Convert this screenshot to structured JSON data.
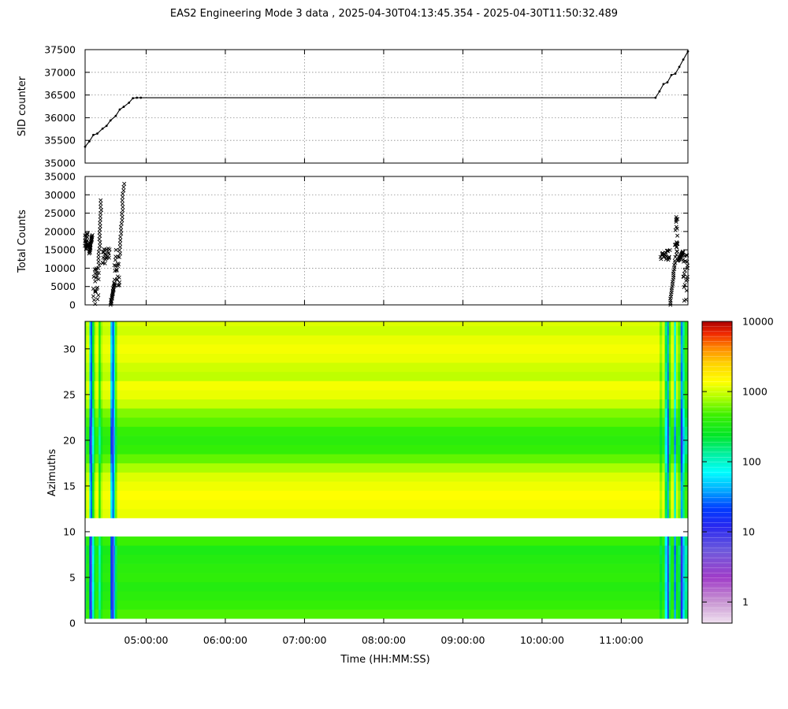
{
  "title": "EAS2  Engineering Mode 3 data ,  2025-04-30T04:13:45.354 - 2025-04-30T11:50:32.489",
  "xlabel": "Time (HH:MM:SS)",
  "colors": {
    "trace": "#000000",
    "grid": "#8c8c8c",
    "missing": "#ffffff"
  },
  "chart_data": [
    {
      "id": "sid",
      "type": "line",
      "ylabel": "SID counter",
      "xlim": [
        "04:13:45",
        "11:50:32"
      ],
      "ylim": [
        35000,
        37500
      ],
      "yticks": [
        35000,
        35500,
        36000,
        36500,
        37000,
        37500
      ],
      "xticks": [
        "05:00:00",
        "06:00:00",
        "07:00:00",
        "08:00:00",
        "09:00:00",
        "10:00:00",
        "11:00:00"
      ],
      "grid": true,
      "series": [
        {
          "x": [
            "04:13:45",
            "04:17:00",
            "04:20:00",
            "04:23:00",
            "04:27:00",
            "04:30:00",
            "04:33:00",
            "04:37:00",
            "04:40:00",
            "04:43:00",
            "04:47:00",
            "04:50:00",
            "04:53:00",
            "04:56:00",
            "11:26:00",
            "11:29:00",
            "11:32:00",
            "11:35:00",
            "11:38:00",
            "11:41:00",
            "11:44:00",
            "11:47:00",
            "11:50:32"
          ],
          "y": [
            35360,
            35480,
            35620,
            35650,
            35760,
            35820,
            35940,
            36040,
            36180,
            36240,
            36330,
            36430,
            36440,
            36440,
            36440,
            36580,
            36740,
            36780,
            36940,
            36970,
            37120,
            37280,
            37460
          ]
        }
      ]
    },
    {
      "id": "counts",
      "type": "scatter",
      "ylabel": "Total Counts",
      "xlim": [
        "04:13:45",
        "11:50:32"
      ],
      "ylim": [
        0,
        35000
      ],
      "yticks": [
        0,
        5000,
        10000,
        15000,
        20000,
        25000,
        30000,
        35000
      ],
      "xticks": [
        "05:00:00",
        "06:00:00",
        "07:00:00",
        "08:00:00",
        "09:00:00",
        "10:00:00",
        "11:00:00"
      ],
      "grid": true,
      "marker": "x",
      "clusters": [
        {
          "x": [
            "04:13:45",
            "04:16:00"
          ],
          "y": [
            15000,
            19500
          ]
        },
        {
          "x": [
            "04:17:00",
            "04:19:00"
          ],
          "y": [
            14000,
            19000
          ]
        },
        {
          "x": [
            "04:20:00",
            "04:24:00"
          ],
          "y": [
            0,
            10000
          ]
        },
        {
          "x": [
            "04:24:00",
            "04:26:00"
          ],
          "y": [
            10000,
            28500
          ]
        },
        {
          "x": [
            "04:27:00",
            "04:32:00"
          ],
          "y": [
            11000,
            15500
          ]
        },
        {
          "x": [
            "04:33:00",
            "04:36:00"
          ],
          "y": [
            0,
            6000
          ]
        },
        {
          "x": [
            "04:36:00",
            "04:40:00"
          ],
          "y": [
            5000,
            16000
          ]
        },
        {
          "x": [
            "04:40:00",
            "04:43:00"
          ],
          "y": [
            14000,
            33000
          ]
        },
        {
          "x": [
            "11:30:00",
            "11:37:00"
          ],
          "y": [
            12000,
            15000
          ]
        },
        {
          "x": [
            "11:37:00",
            "11:41:00"
          ],
          "y": [
            0,
            12000
          ]
        },
        {
          "x": [
            "11:41:00",
            "11:43:00"
          ],
          "y": [
            13000,
            24000
          ]
        },
        {
          "x": [
            "11:43:00",
            "11:47:00"
          ],
          "y": [
            12000,
            14500
          ]
        },
        {
          "x": [
            "11:47:00",
            "11:50:32"
          ],
          "y": [
            0,
            17000
          ]
        }
      ]
    },
    {
      "id": "azimuths",
      "type": "heatmap",
      "ylabel": "Azimuths",
      "xlim": [
        "04:13:45",
        "11:50:32"
      ],
      "ylim": [
        0,
        33
      ],
      "yticks": [
        0,
        5,
        10,
        15,
        20,
        25,
        30
      ],
      "xticks": [
        "05:00:00",
        "06:00:00",
        "07:00:00",
        "08:00:00",
        "09:00:00",
        "10:00:00",
        "11:00:00"
      ],
      "color_scale": "log",
      "cbar_ticks": [
        1,
        10,
        100,
        1000,
        10000
      ],
      "cbar_range": [
        0.5,
        10000
      ],
      "missing_rows": [
        9,
        10
      ],
      "row_values": [
        500,
        420,
        380,
        350,
        400,
        380,
        350,
        320,
        450,
        null,
        null,
        1200,
        1300,
        1400,
        1250,
        1100,
        800,
        560,
        420,
        380,
        420,
        540,
        650,
        950,
        1200,
        1300,
        900,
        1000,
        1200,
        1300,
        1200,
        1000,
        1100
      ],
      "segments": [
        {
          "start": "04:13:45",
          "end": "04:14:30",
          "scale": 0.3
        },
        {
          "start": "04:14:30",
          "end": "04:17:00",
          "scale": 0.9
        },
        {
          "start": "04:17:00",
          "end": "04:18:00",
          "scale": 0.05
        },
        {
          "start": "04:18:00",
          "end": "04:19:00",
          "scale": 0.02
        },
        {
          "start": "04:19:00",
          "end": "04:20:30",
          "scale": 0.2
        },
        {
          "start": "04:20:30",
          "end": "04:21:30",
          "scale": 0.6
        },
        {
          "start": "04:21:30",
          "end": "04:24:00",
          "scale": 0.95
        },
        {
          "start": "04:24:00",
          "end": "04:25:30",
          "scale": 0.3
        },
        {
          "start": "04:25:30",
          "end": "04:27:00",
          "scale": 0.7
        },
        {
          "start": "04:27:00",
          "end": "04:33:00",
          "scale": 0.95
        },
        {
          "start": "04:33:00",
          "end": "04:34:30",
          "scale": 0.05
        },
        {
          "start": "04:34:30",
          "end": "04:35:30",
          "scale": 0.02
        },
        {
          "start": "04:35:30",
          "end": "04:36:30",
          "scale": 0.1
        },
        {
          "start": "04:36:30",
          "end": "04:38:00",
          "scale": 0.5
        },
        {
          "start": "04:38:00",
          "end": "11:29:00",
          "scale": 1.0
        },
        {
          "start": "11:29:00",
          "end": "11:31:00",
          "scale": 0.6
        },
        {
          "start": "11:31:00",
          "end": "11:33:00",
          "scale": 0.95
        },
        {
          "start": "11:33:00",
          "end": "11:35:00",
          "scale": 0.15
        },
        {
          "start": "11:35:00",
          "end": "11:36:00",
          "scale": 0.03
        },
        {
          "start": "11:36:00",
          "end": "11:37:30",
          "scale": 0.4
        },
        {
          "start": "11:37:30",
          "end": "11:40:00",
          "scale": 0.9
        },
        {
          "start": "11:40:00",
          "end": "11:41:30",
          "scale": 0.08
        },
        {
          "start": "11:41:30",
          "end": "11:43:00",
          "scale": 0.8
        },
        {
          "start": "11:43:00",
          "end": "11:45:00",
          "scale": 0.5
        },
        {
          "start": "11:45:00",
          "end": "11:46:30",
          "scale": 0.03
        },
        {
          "start": "11:46:30",
          "end": "11:48:00",
          "scale": 0.12
        },
        {
          "start": "11:48:00",
          "end": "11:50:32",
          "scale": 0.35
        }
      ]
    }
  ]
}
